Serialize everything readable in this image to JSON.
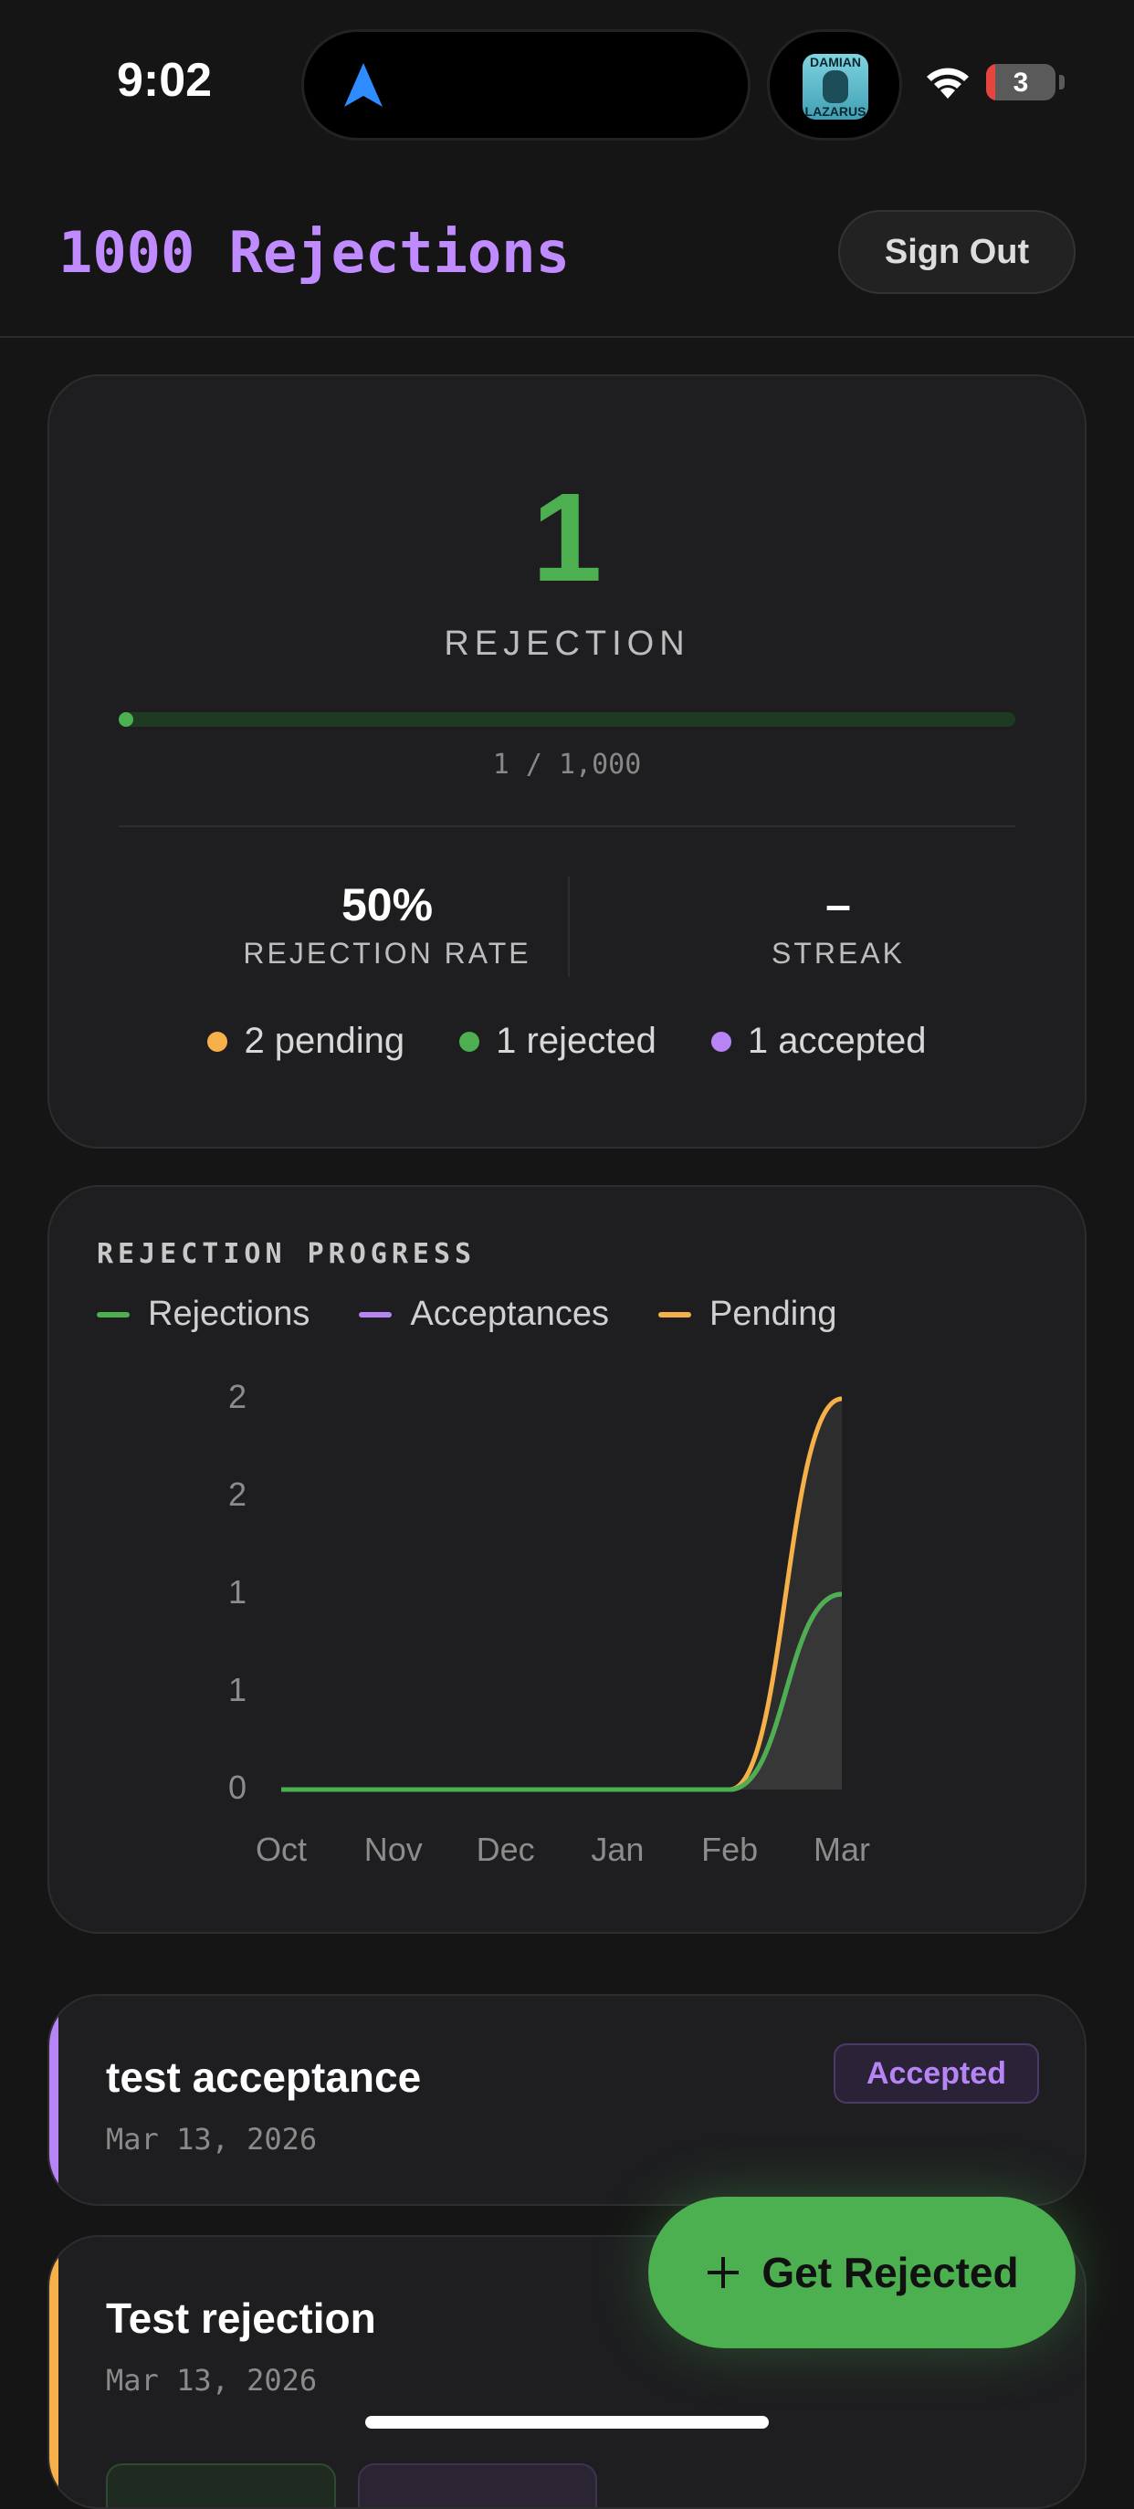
{
  "status_bar": {
    "time": "9:02",
    "album_art_text_top": "DAMIAN",
    "album_art_text_bottom": "LAZARUS",
    "battery": "3"
  },
  "header": {
    "title": "1000 Rejections",
    "sign_out": "Sign Out"
  },
  "summary": {
    "count": "1",
    "count_label": "REJECTION",
    "progress_text": "1 / 1,000",
    "progress_fraction": 0.001,
    "rejection_rate": "50%",
    "rejection_rate_label": "REJECTION RATE",
    "streak": "–",
    "streak_label": "STREAK",
    "breakdown": [
      {
        "label": "2 pending",
        "color": "#f5b04a"
      },
      {
        "label": "1 rejected",
        "color": "#4caf50"
      },
      {
        "label": "1 accepted",
        "color": "#b784f6"
      }
    ]
  },
  "chart": {
    "title": "REJECTION PROGRESS",
    "legend": [
      {
        "label": "Rejections",
        "color": "#4caf50"
      },
      {
        "label": "Acceptances",
        "color": "#b784f6"
      },
      {
        "label": "Pending",
        "color": "#f5b04a"
      }
    ]
  },
  "chart_data": {
    "type": "area",
    "categories": [
      "Oct",
      "Nov",
      "Dec",
      "Jan",
      "Feb",
      "Mar"
    ],
    "y_tick_labels": [
      "2",
      "2",
      "1",
      "1",
      "0"
    ],
    "ylim": [
      0,
      2
    ],
    "grid": false,
    "legend_position": "top-left",
    "series": [
      {
        "name": "Rejections",
        "color": "#4caf50",
        "values": [
          0,
          0,
          0,
          0,
          0,
          1
        ]
      },
      {
        "name": "Acceptances",
        "color": "#b784f6",
        "values": [
          0,
          0,
          0,
          0,
          0,
          1
        ]
      },
      {
        "name": "Pending",
        "color": "#f5b04a",
        "values": [
          0,
          0,
          0,
          0,
          0,
          2
        ]
      }
    ]
  },
  "entries": [
    {
      "title": "test acceptance",
      "date": "Mar 13, 2026",
      "status": "Accepted",
      "accent": "#b784f6"
    },
    {
      "title": "Test rejection",
      "date": "Mar 13, 2026",
      "status": "",
      "accent": "#f5b04a"
    }
  ],
  "fab": {
    "label": "Get Rejected",
    "icon": "plus-icon"
  }
}
